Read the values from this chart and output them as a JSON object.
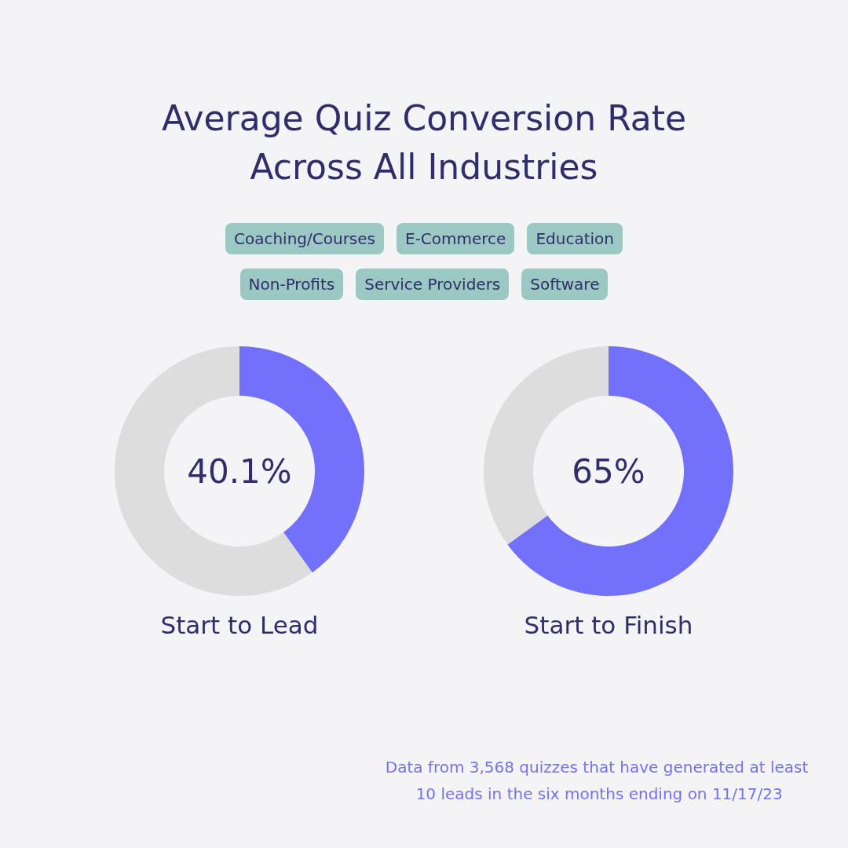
{
  "chart_data": [
    {
      "type": "other",
      "title": "Average Quiz Conversion Rate Across All Industries",
      "annotations": [
        "Coaching/Courses",
        "E-Commerce",
        "Education",
        "Non-Profits",
        "Service Providers",
        "Software"
      ]
    },
    {
      "type": "donut",
      "title": "Start to Lead",
      "categories": [
        null,
        null
      ],
      "values": [
        40.1,
        59.9
      ],
      "colors": [
        "#7370fb",
        "#dddddd"
      ],
      "annotations": [
        "40.1%"
      ]
    },
    {
      "type": "donut",
      "title": "Start to Finish",
      "categories": [
        null,
        null
      ],
      "values": [
        65,
        35
      ],
      "colors": [
        "#7370fb",
        "#dddddd"
      ],
      "annotations": [
        "65%",
        "Data from 3,568 quizzes that have generated at least 10 leads in the six months ending on 11/17/23"
      ]
    }
  ]
}
